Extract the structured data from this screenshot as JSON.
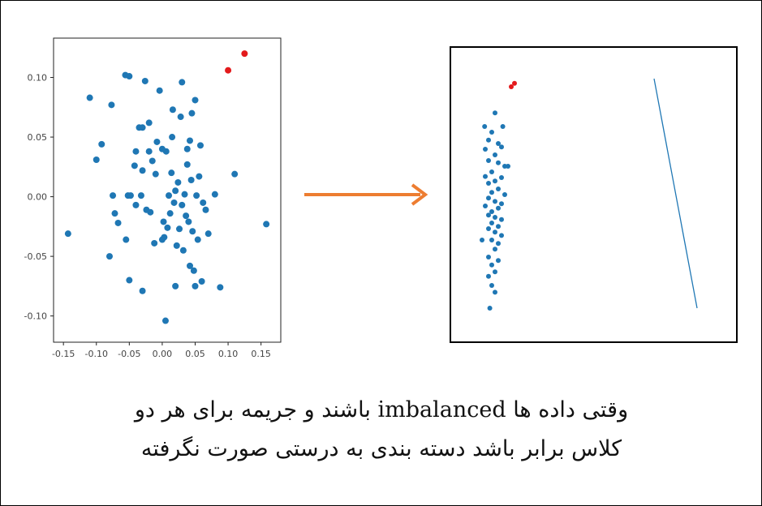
{
  "colors": {
    "point": "#1f77b4",
    "highlight": "#e31a1c",
    "arrow": "#ed7d31"
  },
  "caption": {
    "line1": "وقتی داده ها imbalanced باشند و جریمه برای هر دو",
    "line2": "کلاس برابر باشد دسته بندی به درستی صورت نگرفته"
  },
  "chart_data": [
    {
      "type": "scatter",
      "title": "",
      "xlabel": "",
      "ylabel": "",
      "xlim": [
        -0.165,
        0.18
      ],
      "ylim": [
        -0.122,
        0.133
      ],
      "xticks": [
        -0.15,
        -0.1,
        -0.05,
        0.0,
        0.05,
        0.1,
        0.15
      ],
      "xtick_labels": [
        "-0.15",
        "-0.10",
        "-0.05",
        "0.00",
        "0.05",
        "0.10",
        "0.15"
      ],
      "yticks": [
        0.1,
        0.05,
        0.0,
        -0.05,
        -0.1
      ],
      "ytick_labels": [
        "0.10",
        "0.05",
        "0.00",
        "-0.05",
        "-0.10"
      ],
      "series": [
        {
          "color": "#1f77b4",
          "points": [
            [
              -0.143,
              -0.031
            ],
            [
              -0.11,
              0.083
            ],
            [
              -0.1,
              0.031
            ],
            [
              -0.092,
              0.044
            ],
            [
              -0.077,
              0.077
            ],
            [
              -0.075,
              0.001
            ],
            [
              -0.072,
              -0.014
            ],
            [
              -0.067,
              -0.022
            ],
            [
              -0.056,
              0.102
            ],
            [
              -0.05,
              0.101
            ],
            [
              -0.055,
              -0.036
            ],
            [
              -0.052,
              0.001
            ],
            [
              -0.048,
              0.001
            ],
            [
              -0.042,
              0.026
            ],
            [
              -0.04,
              -0.007
            ],
            [
              -0.035,
              0.058
            ],
            [
              -0.032,
              0.001
            ],
            [
              -0.03,
              0.058
            ],
            [
              -0.024,
              -0.011
            ],
            [
              -0.02,
              0.062
            ],
            [
              -0.018,
              -0.013
            ],
            [
              -0.015,
              0.03
            ],
            [
              -0.012,
              -0.039
            ],
            [
              -0.008,
              0.046
            ],
            [
              -0.004,
              0.089
            ],
            [
              0.0,
              -0.036
            ],
            [
              0.002,
              -0.021
            ],
            [
              0.006,
              0.038
            ],
            [
              0.008,
              -0.026
            ],
            [
              0.01,
              0.001
            ],
            [
              0.012,
              -0.014
            ],
            [
              0.014,
              0.02
            ],
            [
              0.016,
              0.073
            ],
            [
              0.018,
              -0.005
            ],
            [
              0.02,
              0.005
            ],
            [
              0.022,
              -0.041
            ],
            [
              0.024,
              0.012
            ],
            [
              0.026,
              -0.027
            ],
            [
              0.028,
              0.067
            ],
            [
              0.03,
              0.096
            ],
            [
              0.032,
              -0.045
            ],
            [
              0.034,
              0.002
            ],
            [
              0.036,
              -0.016
            ],
            [
              0.038,
              0.027
            ],
            [
              0.04,
              -0.021
            ],
            [
              0.042,
              -0.058
            ],
            [
              0.044,
              0.014
            ],
            [
              0.046,
              -0.029
            ],
            [
              0.048,
              -0.062
            ],
            [
              0.05,
              0.081
            ],
            [
              0.052,
              0.001
            ],
            [
              0.054,
              -0.036
            ],
            [
              0.056,
              0.017
            ],
            [
              0.058,
              0.043
            ],
            [
              0.062,
              -0.005
            ],
            [
              0.066,
              -0.011
            ],
            [
              0.07,
              -0.031
            ],
            [
              0.08,
              0.002
            ],
            [
              0.088,
              -0.076
            ],
            [
              0.11,
              0.019
            ],
            [
              0.158,
              -0.023
            ],
            [
              -0.08,
              -0.05
            ],
            [
              -0.05,
              -0.07
            ],
            [
              -0.03,
              -0.079
            ],
            [
              0.005,
              -0.104
            ],
            [
              0.02,
              -0.075
            ],
            [
              0.05,
              -0.075
            ],
            [
              0.06,
              -0.071
            ],
            [
              -0.04,
              0.038
            ],
            [
              -0.03,
              0.022
            ],
            [
              0.042,
              0.047
            ],
            [
              -0.02,
              0.038
            ],
            [
              0.045,
              0.07
            ],
            [
              -0.026,
              0.097
            ],
            [
              0.0,
              0.04
            ],
            [
              -0.01,
              0.019
            ],
            [
              0.03,
              -0.007
            ],
            [
              0.038,
              0.04
            ],
            [
              0.003,
              -0.034
            ],
            [
              0.015,
              0.05
            ]
          ]
        },
        {
          "color": "#e31a1c",
          "points": [
            [
              0.1,
              0.106
            ],
            [
              0.125,
              0.12
            ]
          ]
        }
      ]
    },
    {
      "type": "scatter",
      "title": "",
      "xlabel": "",
      "ylabel": "",
      "axes": "hidden",
      "series": [
        {
          "color": "#1f77b4",
          "points": [
            [
              -0.05,
              0.072
            ],
            [
              -0.055,
              0.055
            ],
            [
              -0.06,
              0.048
            ],
            [
              -0.045,
              0.045
            ],
            [
              -0.04,
              0.042
            ],
            [
              -0.065,
              0.04
            ],
            [
              -0.05,
              0.035
            ],
            [
              -0.06,
              0.03
            ],
            [
              -0.045,
              0.028
            ],
            [
              -0.035,
              0.025
            ],
            [
              -0.055,
              0.02
            ],
            [
              -0.065,
              0.016
            ],
            [
              -0.04,
              0.015
            ],
            [
              -0.05,
              0.012
            ],
            [
              -0.06,
              0.01
            ],
            [
              -0.045,
              0.005
            ],
            [
              -0.055,
              0.002
            ],
            [
              -0.035,
              0.0
            ],
            [
              -0.06,
              -0.003
            ],
            [
              -0.05,
              -0.006
            ],
            [
              -0.04,
              -0.008
            ],
            [
              -0.065,
              -0.01
            ],
            [
              -0.045,
              -0.012
            ],
            [
              -0.055,
              -0.015
            ],
            [
              -0.06,
              -0.018
            ],
            [
              -0.05,
              -0.02
            ],
            [
              -0.04,
              -0.022
            ],
            [
              -0.055,
              -0.025
            ],
            [
              -0.045,
              -0.028
            ],
            [
              -0.06,
              -0.03
            ],
            [
              -0.05,
              -0.033
            ],
            [
              -0.04,
              -0.036
            ],
            [
              -0.055,
              -0.04
            ],
            [
              -0.045,
              -0.043
            ],
            [
              -0.05,
              -0.048
            ],
            [
              -0.06,
              -0.055
            ],
            [
              -0.045,
              -0.058
            ],
            [
              -0.055,
              -0.062
            ],
            [
              -0.05,
              -0.068
            ],
            [
              -0.06,
              -0.072
            ],
            [
              -0.055,
              -0.08
            ],
            [
              -0.05,
              -0.086
            ],
            [
              -0.058,
              -0.1
            ],
            [
              -0.03,
              0.025
            ],
            [
              -0.038,
              0.06
            ],
            [
              -0.066,
              0.06
            ],
            [
              -0.07,
              -0.04
            ]
          ]
        },
        {
          "color": "#e31a1c",
          "points": [
            [
              -0.025,
              0.095
            ],
            [
              -0.02,
              0.098
            ]
          ]
        }
      ]
    }
  ]
}
